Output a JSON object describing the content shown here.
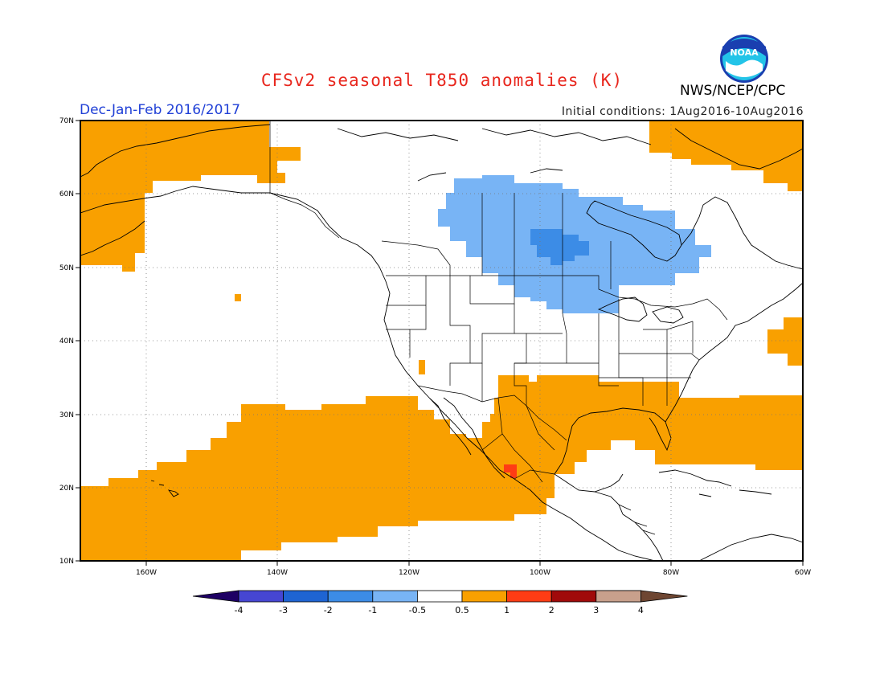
{
  "header": {
    "title": "CFSv2 seasonal T850 anomalies (K)",
    "season": "Dec-Jan-Feb 2016/2017",
    "initial_conditions": "Initial conditions: 1Aug2016-10Aug2016",
    "agency": "NWS/NCEP/CPC",
    "logo_text": "NOAA"
  },
  "map": {
    "lon_range": [
      -170,
      -60
    ],
    "lat_range": [
      10,
      70
    ],
    "lat_labels": [
      "70N",
      "60N",
      "50N",
      "40N",
      "30N",
      "20N",
      "10N"
    ],
    "lon_labels": [
      "160W",
      "140W",
      "120W",
      "100W",
      "80W",
      "60W"
    ],
    "colors": {
      "warm_1": "#f9a000",
      "warm_2": "#ff3c14",
      "cool_1": "#78b4f5",
      "cool_2": "#3c8ce6",
      "neutral": "#ffffff"
    }
  },
  "colorbar": {
    "labels": [
      "-4",
      "-3",
      "-2",
      "-1",
      "-0.5",
      "0.5",
      "1",
      "2",
      "3",
      "4"
    ],
    "colors": [
      "#1e0a96",
      "#4646d2",
      "#1e64d2",
      "#3c8ce6",
      "#78b4f5",
      "#ffffff",
      "#f9a000",
      "#ff3c14",
      "#a00a0a",
      "#c8a08c"
    ],
    "left_arrow_color": "#1e0064",
    "right_arrow_color": "#6e4632"
  }
}
